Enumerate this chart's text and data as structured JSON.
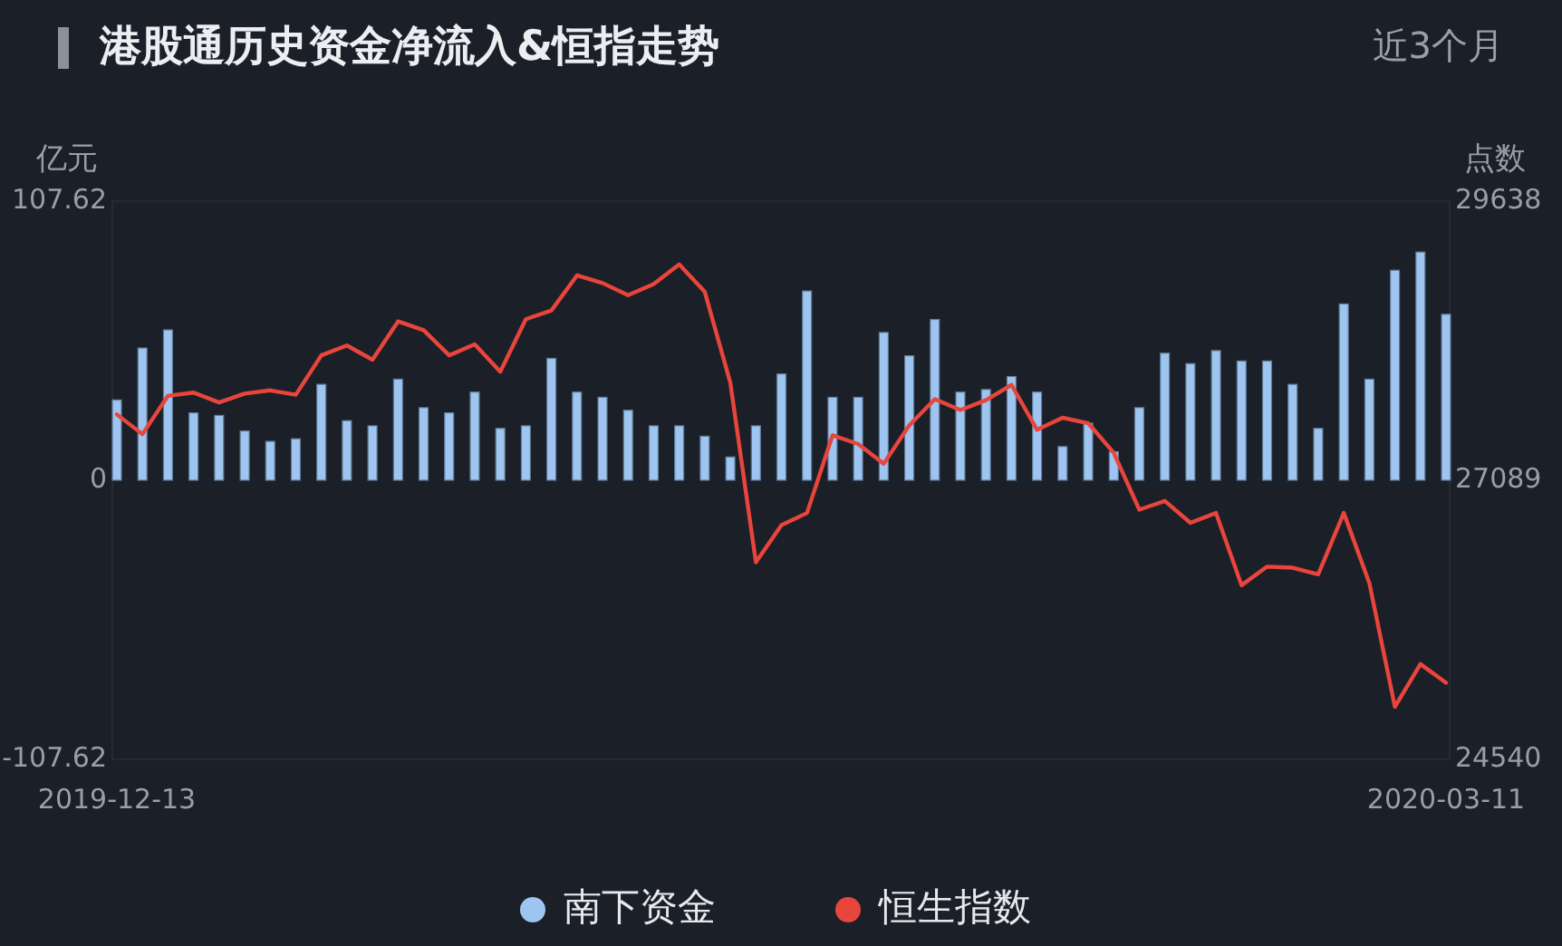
{
  "chart_data": {
    "type": "bar",
    "title": "港股通历史资金净流入&恒指走势",
    "subtitle": "近3个月",
    "ylabel": "亿元",
    "y2label": "点数",
    "categories": [
      "2019-12-13",
      null,
      null,
      null,
      null,
      null,
      null,
      null,
      null,
      null,
      null,
      null,
      null,
      null,
      null,
      null,
      null,
      null,
      null,
      null,
      null,
      null,
      null,
      null,
      null,
      null,
      null,
      null,
      null,
      null,
      null,
      null,
      null,
      null,
      null,
      null,
      null,
      null,
      null,
      null,
      null,
      null,
      null,
      null,
      null,
      null,
      null,
      null,
      null,
      null,
      null,
      null,
      "2020-03-11"
    ],
    "series": [
      {
        "name": "南下资金",
        "color": "#9ec5ef",
        "values": [
          31,
          51,
          58,
          26,
          25,
          19,
          15,
          16,
          37,
          23,
          21,
          39,
          28,
          26,
          34,
          20,
          21,
          47,
          34,
          32,
          27,
          21,
          21,
          17,
          9,
          21,
          41,
          73,
          32,
          32,
          57,
          48,
          62,
          34,
          35,
          40,
          34,
          13,
          22,
          11,
          28,
          49,
          45,
          50,
          46,
          46,
          37,
          20,
          68,
          39,
          81,
          88,
          64
        ]
      },
      {
        "name": "恒生指数",
        "type": "line",
        "axis": "y2",
        "color": "#e8453c",
        "values": [
          27690,
          27510,
          27860,
          27890,
          27800,
          27880,
          27910,
          27870,
          28230,
          28320,
          28190,
          28540,
          28460,
          28230,
          28330,
          28080,
          28560,
          28640,
          28960,
          28890,
          28780,
          28880,
          29060,
          28810,
          27980,
          26340,
          26680,
          26790,
          27500,
          27420,
          27240,
          27590,
          27830,
          27730,
          27820,
          27960,
          27550,
          27660,
          27610,
          27340,
          26820,
          26900,
          26700,
          26790,
          26130,
          26300,
          26290,
          26230,
          26790,
          26150,
          25020,
          25410,
          25240
        ]
      }
    ],
    "ylim": [
      -107.62,
      107.62
    ],
    "yticks": [
      -107.62,
      0,
      107.62
    ],
    "y2lim": [
      24540,
      29638
    ],
    "y2ticks": [
      24540,
      27089,
      29638
    ],
    "legend": "bottom"
  }
}
